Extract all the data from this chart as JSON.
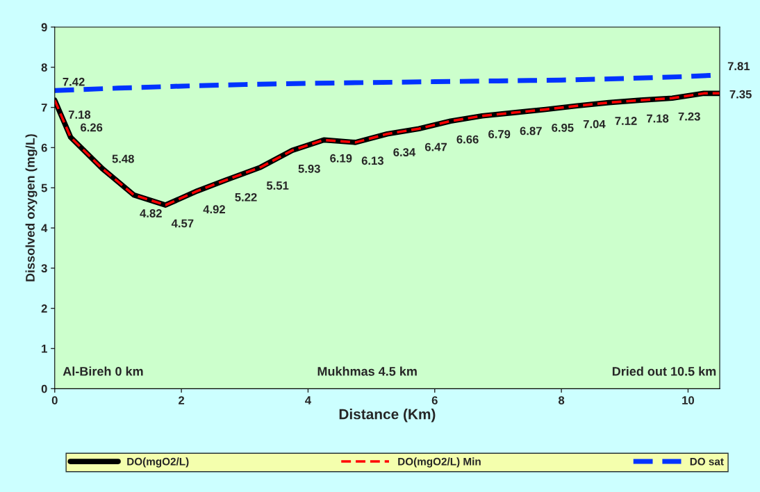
{
  "chart_data": {
    "type": "line",
    "xlabel": "Distance (Km)",
    "ylabel": "Dissolved oxygen (mg/L)",
    "xlim": [
      0,
      10.5
    ],
    "ylim": [
      0,
      9
    ],
    "xticks": [
      0,
      2,
      4,
      6,
      8,
      10
    ],
    "yticks": [
      0,
      1,
      2,
      3,
      4,
      5,
      6,
      7,
      8,
      9
    ],
    "grid": false,
    "legend": "bottom",
    "marker": "none",
    "series": [
      {
        "name": "DO(mgO2/L)",
        "color": "#000000",
        "line_style": "solid",
        "x": [
          0,
          0.25,
          0.75,
          1.25,
          1.75,
          2.25,
          2.75,
          3.25,
          3.75,
          4.25,
          4.75,
          5.25,
          5.75,
          6.25,
          6.75,
          7.25,
          7.75,
          8.25,
          8.75,
          9.25,
          9.75,
          10.25,
          10.5
        ],
        "values": [
          7.18,
          6.26,
          5.48,
          4.82,
          4.57,
          4.92,
          5.22,
          5.51,
          5.93,
          6.19,
          6.13,
          6.34,
          6.47,
          6.66,
          6.79,
          6.87,
          6.95,
          7.04,
          7.12,
          7.18,
          7.23,
          7.35,
          7.35
        ],
        "value_labels": [
          "7.18",
          "6.26",
          "5.48",
          "4.82",
          "4.57",
          "4.92",
          "5.22",
          "5.51",
          "5.93",
          "6.19",
          "6.13",
          "6.34",
          "6.47",
          "6.66",
          "6.79",
          "6.87",
          "6.95",
          "7.04",
          "7.12",
          "7.18",
          "7.23",
          null,
          "7.35"
        ]
      },
      {
        "name": "DO(mgO2/L) Min",
        "color": "#ff0000",
        "line_style": "dashed",
        "x": [
          0,
          0.25,
          0.75,
          1.25,
          1.75,
          2.25,
          2.75,
          3.25,
          3.75,
          4.25,
          4.75,
          5.25,
          5.75,
          6.25,
          6.75,
          7.25,
          7.75,
          8.25,
          8.75,
          9.25,
          9.75,
          10.25,
          10.5
        ],
        "values": [
          7.18,
          6.26,
          5.48,
          4.82,
          4.57,
          4.92,
          5.22,
          5.51,
          5.93,
          6.19,
          6.13,
          6.34,
          6.47,
          6.66,
          6.79,
          6.87,
          6.95,
          7.04,
          7.12,
          7.18,
          7.23,
          7.35,
          7.35
        ]
      },
      {
        "name": "DO sat",
        "color": "#0033ff",
        "line_style": "dashed",
        "x": [
          0,
          1,
          2,
          3,
          4,
          5,
          6,
          7,
          8,
          9,
          10,
          10.5
        ],
        "values": [
          7.42,
          7.48,
          7.53,
          7.57,
          7.6,
          7.62,
          7.64,
          7.66,
          7.68,
          7.72,
          7.77,
          7.81
        ],
        "value_labels": [
          "7.42",
          null,
          null,
          null,
          null,
          null,
          null,
          null,
          null,
          null,
          null,
          "7.81"
        ]
      }
    ],
    "annotations": [
      "Al-Bireh 0 km",
      "Mukhmas 4.5 km",
      "Dried out 10.5 km"
    ]
  }
}
